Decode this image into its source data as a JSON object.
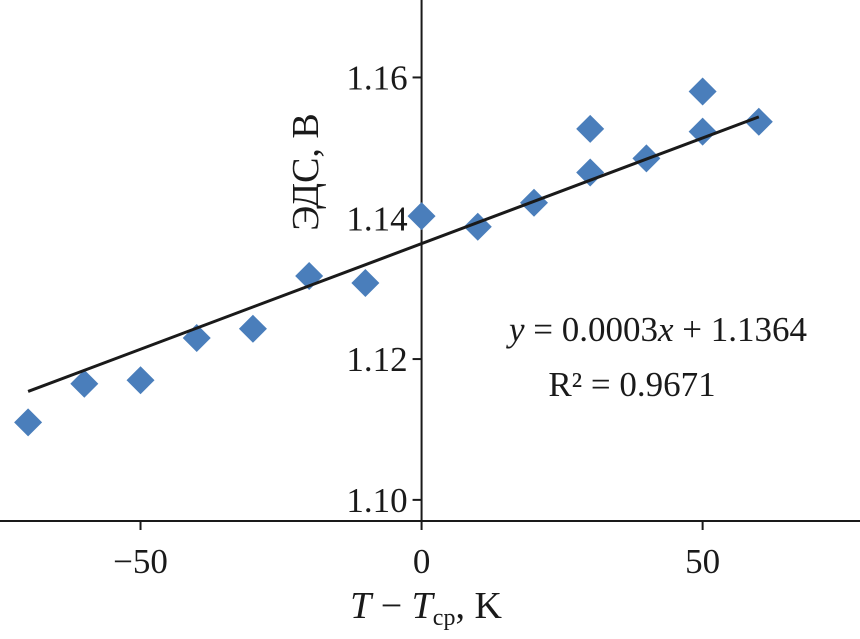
{
  "chart_data": {
    "type": "scatter",
    "xlabel": {
      "main": "T",
      "minus": " − ",
      "ref": "T",
      "sub": "ср",
      "unit": ", K"
    },
    "ylabel": "ЭДС, В",
    "xlim": [
      -75,
      78
    ],
    "ylim": [
      1.097,
      1.171
    ],
    "xticks": [
      -50,
      0,
      50
    ],
    "xtick_labels": [
      "−50",
      "0",
      "50"
    ],
    "yticks": [
      1.1,
      1.12,
      1.14,
      1.16
    ],
    "ytick_labels": [
      "1.10",
      "1.12",
      "1.14",
      "1.16"
    ],
    "points": [
      {
        "x": -70,
        "y": 1.111
      },
      {
        "x": -60,
        "y": 1.1165
      },
      {
        "x": -50,
        "y": 1.117
      },
      {
        "x": -40,
        "y": 1.123
      },
      {
        "x": -30,
        "y": 1.1243
      },
      {
        "x": -20,
        "y": 1.1318
      },
      {
        "x": -10,
        "y": 1.1308
      },
      {
        "x": 0,
        "y": 1.1403
      },
      {
        "x": 10,
        "y": 1.1388
      },
      {
        "x": 20,
        "y": 1.1422
      },
      {
        "x": 30,
        "y": 1.1527
      },
      {
        "x": 30,
        "y": 1.1465
      },
      {
        "x": 40,
        "y": 1.1485
      },
      {
        "x": 50,
        "y": 1.158
      },
      {
        "x": 50,
        "y": 1.1523
      },
      {
        "x": 60,
        "y": 1.1537
      }
    ],
    "trendline": {
      "slope": 0.0003,
      "intercept": 1.1364,
      "x_range": [
        -70,
        60
      ]
    },
    "equation": {
      "y": "y",
      "mid": " = 0.0003",
      "x": "x",
      "tail": " + 1.1364",
      "r2": "R² = 0.9671"
    },
    "marker_color": "#4a7ebb",
    "line_color": "#1a1a1a",
    "grid": false
  }
}
